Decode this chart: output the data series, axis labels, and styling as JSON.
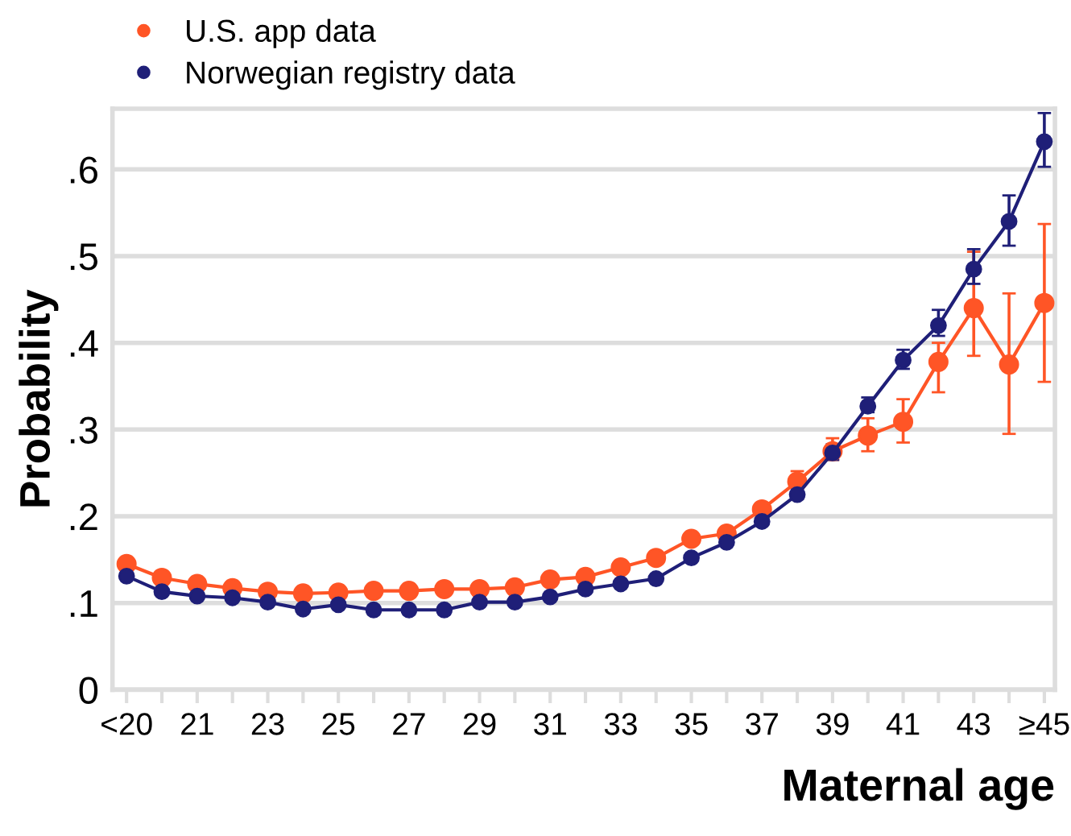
{
  "chart_data": {
    "type": "line",
    "xlabel": "Maternal age",
    "ylabel": "Probability",
    "categories": [
      "<20",
      null,
      "21",
      null,
      "23",
      null,
      "25",
      null,
      "27",
      null,
      "29",
      null,
      "31",
      null,
      "33",
      null,
      "35",
      null,
      "37",
      null,
      "39",
      null,
      "41",
      null,
      "43",
      null,
      "≥45"
    ],
    "series": [
      {
        "name": "U.S. app data",
        "color": "#ff5526",
        "values": [
          0.145,
          0.129,
          0.122,
          0.117,
          0.113,
          0.111,
          0.112,
          0.114,
          0.114,
          0.116,
          0.116,
          0.118,
          0.127,
          0.13,
          0.141,
          0.152,
          0.174,
          0.18,
          0.208,
          0.24,
          0.275,
          0.293,
          0.309,
          0.378,
          0.44,
          0.375,
          0.446
        ],
        "errors": [
          null,
          null,
          null,
          null,
          null,
          null,
          null,
          null,
          null,
          null,
          null,
          null,
          null,
          null,
          null,
          null,
          null,
          null,
          [
            0.203,
            0.215
          ],
          [
            0.24,
            0.252
          ],
          [
            0.265,
            0.29
          ],
          [
            0.275,
            0.313
          ],
          [
            0.285,
            0.335
          ],
          [
            0.343,
            0.4
          ],
          [
            0.385,
            0.505
          ],
          [
            0.295,
            0.457
          ],
          [
            0.355,
            0.537
          ]
        ]
      },
      {
        "name": "Norwegian registry data",
        "color": "#1f1f78",
        "values": [
          0.131,
          0.113,
          0.108,
          0.106,
          0.101,
          0.093,
          0.098,
          0.092,
          0.092,
          0.092,
          0.101,
          0.101,
          0.107,
          0.116,
          0.122,
          0.128,
          0.152,
          0.17,
          0.194,
          0.225,
          0.273,
          0.327,
          0.38,
          0.42,
          0.485,
          0.54,
          0.632
        ],
        "errors": [
          null,
          null,
          null,
          null,
          null,
          null,
          null,
          null,
          null,
          null,
          null,
          null,
          null,
          null,
          null,
          null,
          null,
          null,
          [
            0.19,
            0.2
          ],
          [
            0.22,
            0.232
          ],
          [
            0.265,
            0.283
          ],
          [
            0.32,
            0.337
          ],
          [
            0.37,
            0.392
          ],
          [
            0.408,
            0.438
          ],
          [
            0.468,
            0.508
          ],
          [
            0.512,
            0.57
          ],
          [
            0.603,
            0.665
          ]
        ]
      }
    ],
    "ylim": [
      0,
      0.67
    ],
    "yticks": [
      {
        "value": 0,
        "label": "0"
      },
      {
        "value": 0.1,
        "label": ".1"
      },
      {
        "value": 0.2,
        "label": ".2"
      },
      {
        "value": 0.3,
        "label": ".3"
      },
      {
        "value": 0.4,
        "label": ".4"
      },
      {
        "value": 0.5,
        "label": ".5"
      },
      {
        "value": 0.6,
        "label": ".6"
      }
    ],
    "grid": "y",
    "legend": "top left",
    "marker": "circle",
    "line_style": "solid"
  }
}
